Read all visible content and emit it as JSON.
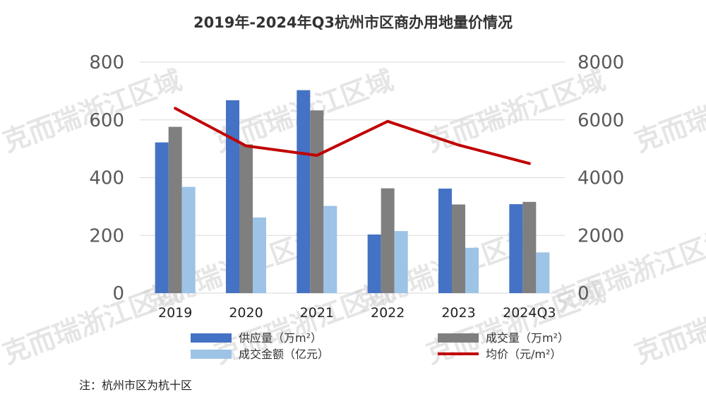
{
  "chart_data": {
    "type": "bar",
    "title": "2019年-2024年Q3杭州市区商办用地量价情况",
    "categories": [
      "2019",
      "2020",
      "2021",
      "2022",
      "2023",
      "2024Q3"
    ],
    "series": [
      {
        "name": "供应量（万m²）",
        "type": "bar",
        "axis": "left",
        "color": "#4472C4",
        "values": [
          522,
          668,
          703,
          203,
          362,
          308
        ]
      },
      {
        "name": "成交量（万m²）",
        "type": "bar",
        "axis": "left",
        "color": "#7F7F7F",
        "values": [
          576,
          515,
          633,
          363,
          307,
          316
        ]
      },
      {
        "name": "成交金额（亿元）",
        "type": "bar",
        "axis": "left",
        "color": "#9DC3E6",
        "values": [
          368,
          262,
          302,
          215,
          157,
          141
        ]
      },
      {
        "name": "均价（元/m²）",
        "type": "line",
        "axis": "right",
        "color": "#C00000",
        "values": [
          6400,
          5100,
          4770,
          5950,
          5130,
          4490
        ]
      }
    ],
    "y_left": {
      "ticks": [
        "800",
        "600",
        "400",
        "200",
        "0"
      ],
      "ylim": [
        0,
        800
      ]
    },
    "y_right": {
      "ticks": [
        "8000",
        "6000",
        "4000",
        "2000",
        "0"
      ],
      "ylim": [
        0,
        8000
      ]
    },
    "grid": true,
    "legend_position": "bottom"
  },
  "watermark": "克而瑞浙江区域",
  "footnote": "注：杭州市区为杭十区"
}
